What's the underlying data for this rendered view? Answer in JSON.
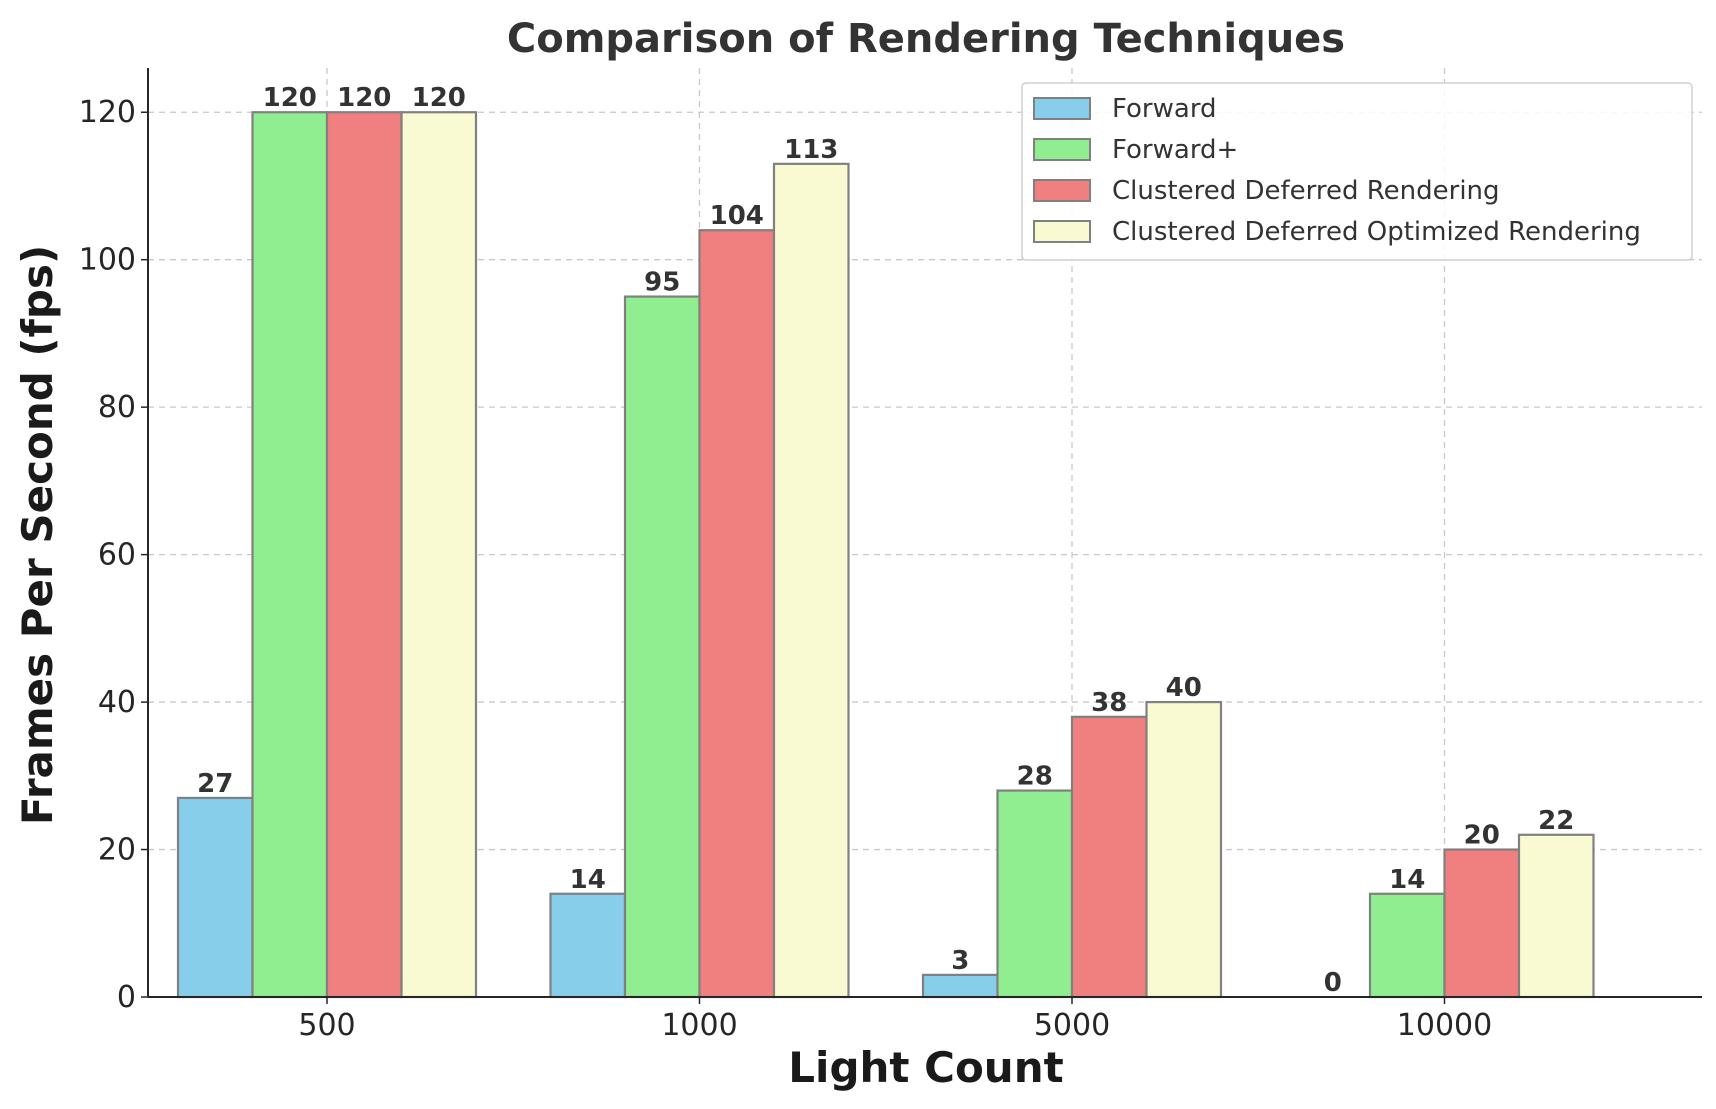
{
  "chart_data": {
    "type": "bar",
    "title": "Comparison of Rendering Techniques",
    "xlabel": "Light Count",
    "ylabel": "Frames Per Second (fps)",
    "categories": [
      "500",
      "1000",
      "5000",
      "10000"
    ],
    "ylim": [
      0,
      126
    ],
    "yticks": [
      0,
      20,
      40,
      60,
      80,
      100,
      120
    ],
    "grid": true,
    "legend_position": "top-right",
    "series": [
      {
        "name": "Forward",
        "values": [
          27,
          14,
          3,
          0
        ],
        "color": "#87ceeb"
      },
      {
        "name": "Forward+",
        "values": [
          120,
          95,
          28,
          14
        ],
        "color": "#90ee90"
      },
      {
        "name": "Clustered Deferred Rendering",
        "values": [
          120,
          104,
          38,
          20
        ],
        "color": "#f08080"
      },
      {
        "name": "Clustered Deferred Optimized Rendering",
        "values": [
          120,
          113,
          40,
          22
        ],
        "color": "#fafad2"
      }
    ],
    "bar_edge_color": "#808080"
  }
}
